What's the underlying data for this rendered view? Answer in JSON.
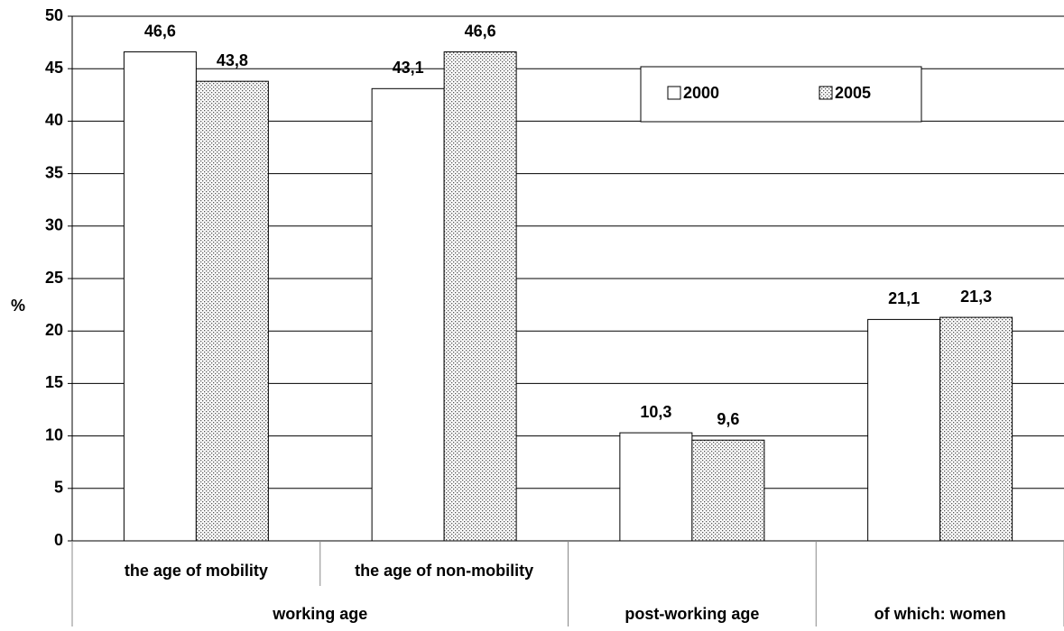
{
  "chart_data": {
    "type": "bar",
    "y_label": "%",
    "categories": [
      "the age of mobility",
      "the age of non-mobility",
      null,
      null
    ],
    "category_groups": [
      {
        "label": "working age",
        "span": 2
      },
      {
        "label": "post-working age",
        "span": 1
      },
      {
        "label": "of which: women",
        "span": 1
      }
    ],
    "series": [
      {
        "name": "2000",
        "color": "#ffffff",
        "values": [
          46.6,
          43.1,
          10.3,
          21.1
        ],
        "value_labels": [
          "46,6",
          "43,1",
          "10,3",
          "21,1"
        ]
      },
      {
        "name": "2005",
        "color": "#555555",
        "pattern": "dots",
        "values": [
          43.8,
          46.6,
          9.6,
          21.3
        ],
        "value_labels": [
          "43,8",
          "46,6",
          "9,6",
          "21,3"
        ]
      }
    ],
    "ylim": [
      0,
      50
    ],
    "yticks": [
      0,
      5,
      10,
      15,
      20,
      25,
      30,
      35,
      40,
      45,
      50
    ],
    "grid": true
  }
}
